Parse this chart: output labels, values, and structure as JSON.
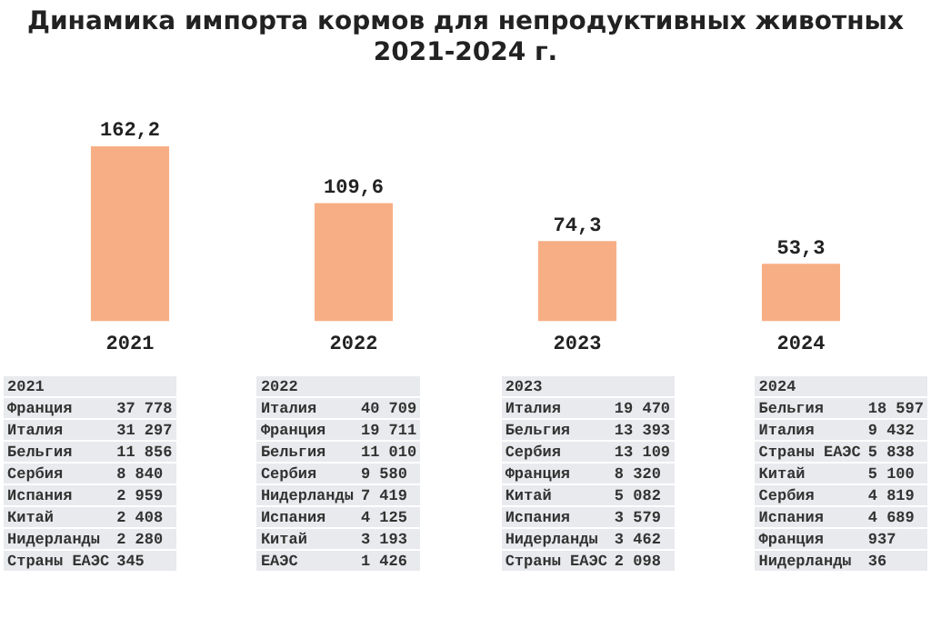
{
  "chart_data": {
    "type": "bar",
    "title": "Динамика импорта  кормов для непродуктивных животных\n2021-2024 г.",
    "categories": [
      "2021",
      "2022",
      "2023",
      "2024"
    ],
    "values": [
      162.2,
      109.6,
      74.3,
      53.3
    ],
    "value_labels": [
      "162,2",
      "109,6",
      "74,3",
      "53,3"
    ],
    "color": "#f7ae84",
    "grid": false,
    "legend": false,
    "tick_labels": "x",
    "annotations": [
      "2021\nФранция\t37 778\nИталия\t31 297\nБельгия\t11 856\nСербия\t8 840\nИспания\t2 959\nКитай\t2 408\nНидерланды\t2 280\nСтраны ЕАЭС\t345",
      "2022\nИталия\t40 709\nФранция\t19 711\nБельгия\t11 010\nСербия\t9 580\nНидерланды\t7 419\nИспания\t4 125\nКитай\t3 193\nЕАЭС\t1 426",
      "2023\nИталия\t19 470\nБельгия\t13 393\nСербия\t13 109\nФранция\t8 320\nКитай\t5 082\nИспания\t3 579\nНидерланды\t3 462\nСтраны ЕАЭС\t2 098",
      "2024\nБельгия\t18 597\nИталия\t9 432\nСтраны ЕАЭС\t5 838\nКитай\t5 100\nСербия\t4 819\nИспания\t4 689\nФранция\t937\nНидерланды\t36"
    ]
  }
}
